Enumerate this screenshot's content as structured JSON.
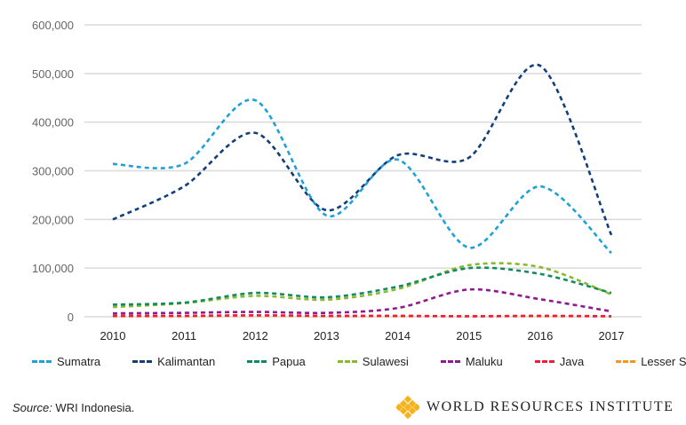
{
  "chart_data": {
    "type": "line",
    "x": [
      "2010",
      "2011",
      "2012",
      "2013",
      "2014",
      "2015",
      "2016",
      "2017"
    ],
    "ylim": [
      0,
      600000
    ],
    "yticks": [
      "0",
      "100,000",
      "200,000",
      "300,000",
      "400,000",
      "500,000",
      "600,000"
    ],
    "ytick_values": [
      0,
      100000,
      200000,
      300000,
      400000,
      500000,
      600000
    ],
    "grid": true,
    "legend_placement": "bottom",
    "series": [
      {
        "name": "Sumatra",
        "color": "#1ea0d8",
        "values": [
          314000,
          314000,
          445000,
          208000,
          323000,
          142000,
          268000,
          131000
        ]
      },
      {
        "name": "Kalimantan",
        "color": "#123f7a",
        "values": [
          200000,
          268000,
          378000,
          219000,
          332000,
          327000,
          516000,
          168000
        ]
      },
      {
        "name": "Papua",
        "color": "#0f8c5e",
        "values": [
          25000,
          29000,
          49000,
          40000,
          62000,
          100000,
          88000,
          49000
        ]
      },
      {
        "name": "Sulawesi",
        "color": "#8ab92d",
        "values": [
          20000,
          28000,
          43000,
          35000,
          57000,
          106000,
          102000,
          46000
        ]
      },
      {
        "name": "Maluku",
        "color": "#8e1a8e",
        "values": [
          7000,
          8000,
          10000,
          8000,
          18000,
          56000,
          36000,
          11000
        ]
      },
      {
        "name": "Java",
        "color": "#ee1c3f",
        "values": [
          2000,
          2000,
          3000,
          2000,
          2000,
          1000,
          2000,
          1000
        ]
      },
      {
        "name": "Lesser Sunda",
        "color": "#f7941d",
        "values": [
          1000,
          1000,
          2000,
          1000,
          1000,
          1000,
          1000,
          1000
        ]
      }
    ]
  },
  "source": {
    "label": "Source:",
    "text": " WRI Indonesia."
  },
  "logo": {
    "text": "WORLD RESOURCES INSTITUTE",
    "color": "#f5b21c"
  }
}
